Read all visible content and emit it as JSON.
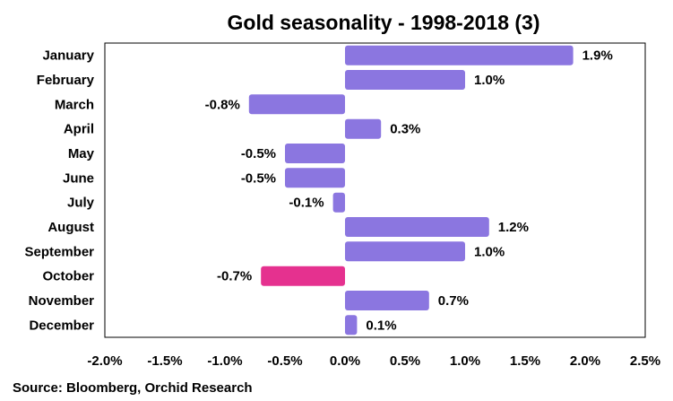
{
  "chart_data": {
    "type": "bar",
    "orientation": "horizontal",
    "title": "Gold seasonality - 1998-2018 (3)",
    "categories": [
      "January",
      "February",
      "March",
      "April",
      "May",
      "June",
      "July",
      "August",
      "September",
      "October",
      "November",
      "December"
    ],
    "values": [
      1.9,
      1.0,
      -0.8,
      0.3,
      -0.5,
      -0.5,
      -0.1,
      1.2,
      1.0,
      -0.7,
      0.7,
      0.1
    ],
    "data_labels": [
      "1.9%",
      "1.0%",
      "-0.8%",
      "0.3%",
      "-0.5%",
      "-0.5%",
      "-0.1%",
      "1.2%",
      "1.0%",
      "-0.7%",
      "0.7%",
      "0.1%"
    ],
    "x_ticks": [
      -2.0,
      -1.5,
      -1.0,
      -0.5,
      0.0,
      0.5,
      1.0,
      1.5,
      2.0,
      2.5
    ],
    "x_tick_labels": [
      "-2.0%",
      "-1.5%",
      "-1.0%",
      "-0.5%",
      "0.0%",
      "0.5%",
      "1.0%",
      "1.5%",
      "2.0%",
      "2.5%"
    ],
    "xlim": [
      -2.0,
      2.5
    ],
    "xlabel": "",
    "ylabel": "",
    "grid": false,
    "highlight_category": "October",
    "colors": {
      "bar": "#8B76E0",
      "highlight": "#E5318F",
      "frame": "#000000"
    }
  },
  "source_note": "Source: Bloomberg, Orchid Research"
}
